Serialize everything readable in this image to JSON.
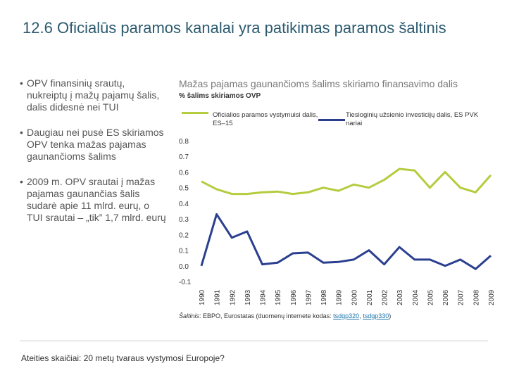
{
  "title": {
    "number": "12.6",
    "text": "Oficialūs paramos kanalai yra patikimas paramos šaltinis"
  },
  "bullets": [
    "OPV finansinių srautų, nukreiptų į mažų pajamų šalis, dalis didesnė nei TUI",
    "Daugiau nei pusė ES skiriamos OPV tenka mažas pajamas gaunančioms šalims",
    "2009 m. OPV srautai į mažas pajamas gaunančias šalis sudarė apie 11 mlrd. eurų, o TUI srautai – „tik” 1,7 mlrd. eurų"
  ],
  "bullet_marker": "•",
  "chart_data": {
    "type": "line",
    "title": "Mažas pajamas gaunančioms šalims skiriamo finansavimo dalis",
    "ylabel": "% šalims skiriamos OVP",
    "xlabel": "",
    "ylim": [
      -0.1,
      0.8
    ],
    "yticks": [
      "0.8",
      "0.7",
      "0.6",
      "0.5",
      "0.4",
      "0.3",
      "0.2",
      "0.1",
      "0.0",
      "-0.1"
    ],
    "categories": [
      "1990",
      "1991",
      "1992",
      "1993",
      "1994",
      "1995",
      "1996",
      "1997",
      "1998",
      "1999",
      "2000",
      "2001",
      "2002",
      "2003",
      "2004",
      "2005",
      "2006",
      "2007",
      "2008",
      "2009"
    ],
    "series": [
      {
        "name": "Oficialios paramos vystymuisi dalis, ES–15",
        "color": "#b5cc3f",
        "values": [
          0.54,
          0.49,
          0.46,
          0.46,
          0.47,
          0.475,
          0.46,
          0.47,
          0.5,
          0.48,
          0.52,
          0.5,
          0.55,
          0.62,
          0.61,
          0.5,
          0.6,
          0.5,
          0.47,
          0.58
        ]
      },
      {
        "name": "Tiesioginių užsienio investicijų dalis, ES PVK nariai",
        "color": "#2b3f8f",
        "values": [
          0.0,
          0.33,
          0.18,
          0.22,
          0.01,
          0.02,
          0.08,
          0.085,
          0.02,
          0.025,
          0.04,
          0.1,
          0.01,
          0.12,
          0.04,
          0.04,
          0.0,
          0.04,
          -0.02,
          0.065
        ]
      }
    ]
  },
  "source": {
    "label": "Šaltinis",
    "text": ": EBPO, Eurostatas (duomenų internete kodas: ",
    "link1": "tsdgp320",
    "separator": ", ",
    "link2": "tsdgp330",
    "end": ")"
  },
  "footer": "Ateities skaičiai: 20 metų tvaraus vystymosi Europoje?"
}
